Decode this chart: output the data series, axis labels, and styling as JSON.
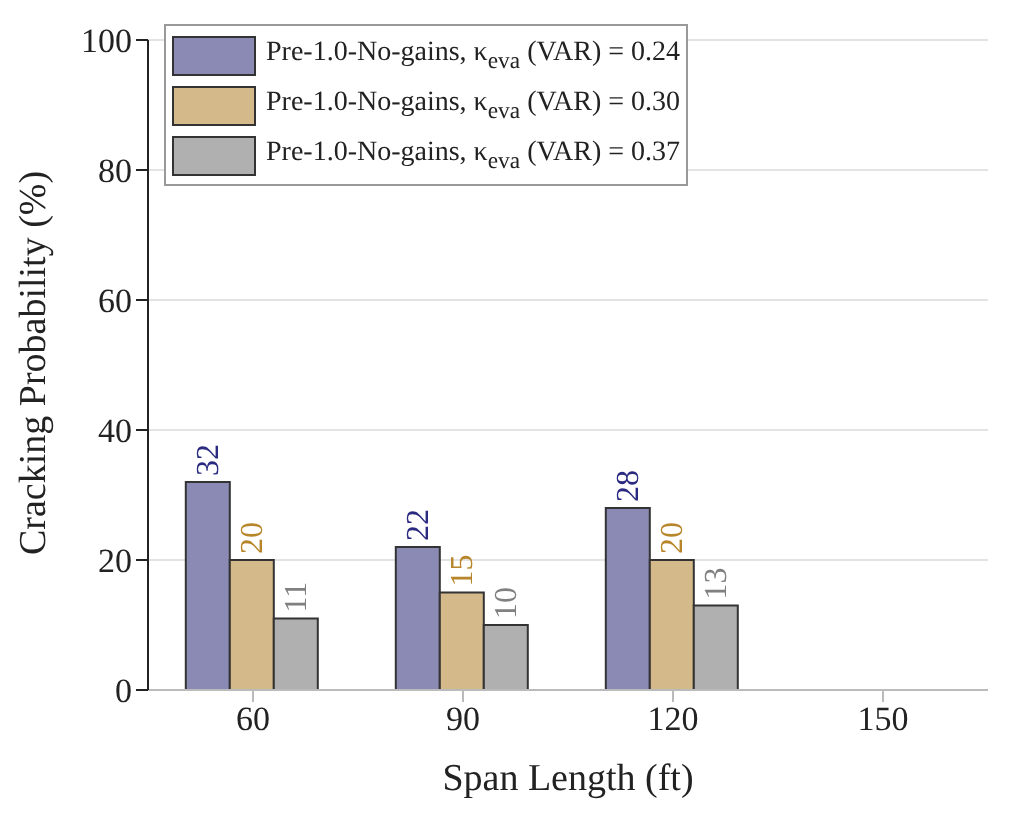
{
  "chart_data": {
    "type": "bar",
    "xlabel": "Span Length (ft)",
    "ylabel": "Cracking Probability (%)",
    "categories": [
      "60",
      "90",
      "120",
      "150"
    ],
    "series": [
      {
        "name": "Pre-1.0-No-gains, κ$_{eva}$ (VAR) = 0.24",
        "color": "#8a8ab5",
        "values": [
          32,
          22,
          28,
          null
        ]
      },
      {
        "name": "Pre-1.0-No-gains, κ$_{eva}$ (VAR) = 0.30",
        "color": "#d4b98a",
        "values": [
          20,
          15,
          20,
          null
        ]
      },
      {
        "name": "Pre-1.0-No-gains, κ$_{eva}$ (VAR) = 0.37",
        "color": "#b0b0b0",
        "values": [
          11,
          10,
          13,
          null
        ]
      }
    ],
    "ylim": [
      0,
      100
    ],
    "yticks": [
      0,
      20,
      40,
      60,
      80,
      100
    ],
    "grid": "y",
    "legend": "top left",
    "data_labels": true
  }
}
